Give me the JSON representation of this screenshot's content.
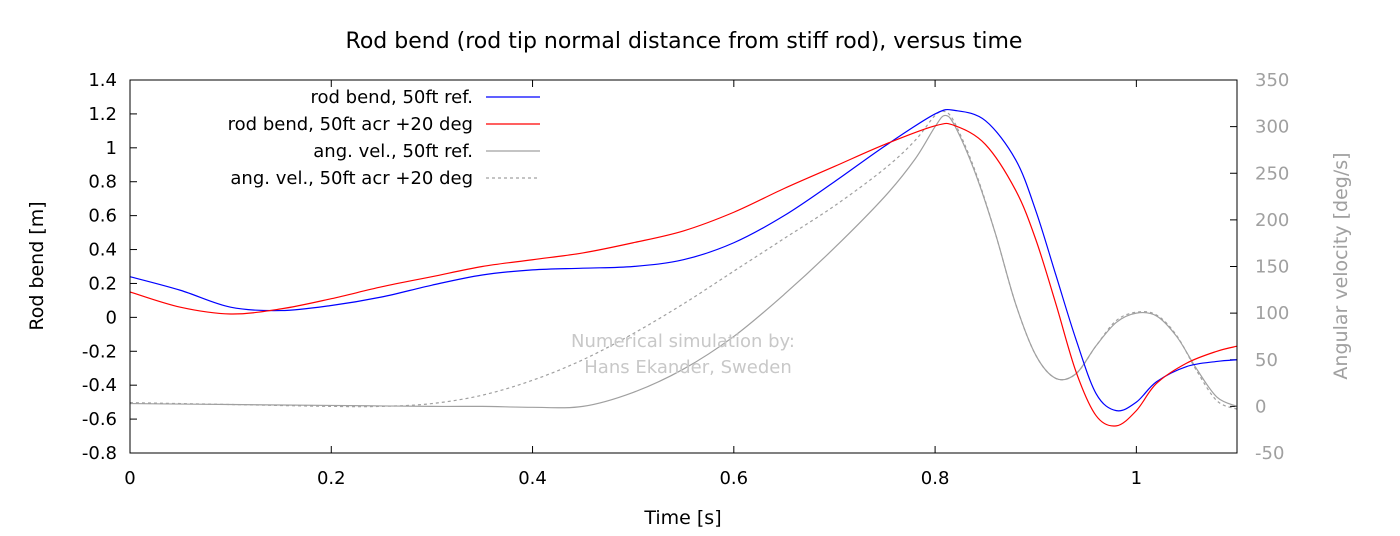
{
  "chart_data": {
    "type": "line",
    "title": "Rod bend (rod tip normal distance from stiff rod), versus time",
    "xlabel": "Time [s]",
    "ylabel": "Rod bend [m]",
    "y2label": "Angular velocity [deg/s]",
    "xlim": [
      0,
      1.1
    ],
    "ylim": [
      -0.8,
      1.4
    ],
    "y2lim": [
      -50,
      350
    ],
    "x_ticks": [
      0,
      0.2,
      0.4,
      0.6,
      0.8,
      1
    ],
    "x_tick_labels": [
      "0",
      "0.2",
      "0.4",
      "0.6",
      "0.8",
      "1"
    ],
    "y_ticks": [
      -0.8,
      -0.6,
      -0.4,
      -0.2,
      0,
      0.2,
      0.4,
      0.6,
      0.8,
      1,
      1.2,
      1.4
    ],
    "y_tick_labels": [
      "-0.8",
      "-0.6",
      "-0.4",
      "-0.2",
      "0",
      "0.2",
      "0.4",
      "0.6",
      "0.8",
      "1",
      "1.2",
      "1.4"
    ],
    "y2_ticks": [
      -50,
      0,
      50,
      100,
      150,
      200,
      250,
      300,
      350
    ],
    "y2_tick_labels": [
      "-50",
      "0",
      "50",
      "100",
      "150",
      "200",
      "250",
      "300",
      "350"
    ],
    "grid": false,
    "legend_position": "top-left",
    "annotation": [
      "Numerical simulation by:",
      "Hans Ekander, Sweden"
    ],
    "series": [
      {
        "name": "rod bend, 50ft ref.",
        "axis": "left",
        "color": "#0000ff",
        "dash": "solid",
        "points": [
          [
            0,
            0.24
          ],
          [
            0.05,
            0.16
          ],
          [
            0.1,
            0.06
          ],
          [
            0.15,
            0.04
          ],
          [
            0.2,
            0.07
          ],
          [
            0.25,
            0.12
          ],
          [
            0.3,
            0.19
          ],
          [
            0.35,
            0.25
          ],
          [
            0.4,
            0.28
          ],
          [
            0.45,
            0.29
          ],
          [
            0.5,
            0.3
          ],
          [
            0.55,
            0.34
          ],
          [
            0.6,
            0.44
          ],
          [
            0.65,
            0.6
          ],
          [
            0.7,
            0.8
          ],
          [
            0.75,
            1.01
          ],
          [
            0.8,
            1.2
          ],
          [
            0.82,
            1.22
          ],
          [
            0.85,
            1.16
          ],
          [
            0.88,
            0.93
          ],
          [
            0.9,
            0.63
          ],
          [
            0.92,
            0.25
          ],
          [
            0.94,
            -0.13
          ],
          [
            0.96,
            -0.45
          ],
          [
            0.98,
            -0.55
          ],
          [
            1.0,
            -0.5
          ],
          [
            1.02,
            -0.38
          ],
          [
            1.05,
            -0.29
          ],
          [
            1.08,
            -0.26
          ],
          [
            1.1,
            -0.25
          ]
        ]
      },
      {
        "name": "rod bend, 50ft acr +20 deg",
        "axis": "left",
        "color": "#ff0000",
        "dash": "solid",
        "points": [
          [
            0,
            0.15
          ],
          [
            0.05,
            0.06
          ],
          [
            0.1,
            0.02
          ],
          [
            0.15,
            0.05
          ],
          [
            0.2,
            0.11
          ],
          [
            0.25,
            0.18
          ],
          [
            0.3,
            0.24
          ],
          [
            0.35,
            0.3
          ],
          [
            0.4,
            0.34
          ],
          [
            0.45,
            0.38
          ],
          [
            0.5,
            0.44
          ],
          [
            0.55,
            0.51
          ],
          [
            0.6,
            0.62
          ],
          [
            0.65,
            0.76
          ],
          [
            0.7,
            0.89
          ],
          [
            0.75,
            1.02
          ],
          [
            0.8,
            1.13
          ],
          [
            0.82,
            1.13
          ],
          [
            0.85,
            1.02
          ],
          [
            0.88,
            0.75
          ],
          [
            0.9,
            0.46
          ],
          [
            0.92,
            0.08
          ],
          [
            0.94,
            -0.32
          ],
          [
            0.96,
            -0.58
          ],
          [
            0.98,
            -0.64
          ],
          [
            1.0,
            -0.55
          ],
          [
            1.02,
            -0.39
          ],
          [
            1.05,
            -0.27
          ],
          [
            1.08,
            -0.2
          ],
          [
            1.1,
            -0.17
          ]
        ]
      },
      {
        "name": "ang. vel., 50ft ref.",
        "axis": "right",
        "color": "#a0a0a0",
        "dash": "solid",
        "points": [
          [
            0,
            3
          ],
          [
            0.1,
            2
          ],
          [
            0.2,
            1
          ],
          [
            0.3,
            0
          ],
          [
            0.35,
            0
          ],
          [
            0.4,
            -1
          ],
          [
            0.45,
            0
          ],
          [
            0.5,
            15
          ],
          [
            0.55,
            40
          ],
          [
            0.6,
            75
          ],
          [
            0.65,
            120
          ],
          [
            0.7,
            170
          ],
          [
            0.75,
            225
          ],
          [
            0.78,
            265
          ],
          [
            0.8,
            300
          ],
          [
            0.81,
            312
          ],
          [
            0.82,
            300
          ],
          [
            0.84,
            250
          ],
          [
            0.86,
            185
          ],
          [
            0.88,
            110
          ],
          [
            0.9,
            55
          ],
          [
            0.92,
            30
          ],
          [
            0.94,
            35
          ],
          [
            0.96,
            65
          ],
          [
            0.98,
            90
          ],
          [
            1.0,
            100
          ],
          [
            1.02,
            97
          ],
          [
            1.04,
            75
          ],
          [
            1.06,
            40
          ],
          [
            1.08,
            10
          ],
          [
            1.1,
            0
          ]
        ]
      },
      {
        "name": "ang. vel., 50ft acr +20 deg",
        "axis": "right",
        "color": "#a0a0a0",
        "dash": "dashed",
        "points": [
          [
            0,
            4
          ],
          [
            0.1,
            2
          ],
          [
            0.2,
            0
          ],
          [
            0.25,
            0
          ],
          [
            0.3,
            3
          ],
          [
            0.35,
            12
          ],
          [
            0.4,
            28
          ],
          [
            0.45,
            50
          ],
          [
            0.5,
            78
          ],
          [
            0.55,
            110
          ],
          [
            0.6,
            145
          ],
          [
            0.65,
            180
          ],
          [
            0.7,
            215
          ],
          [
            0.75,
            255
          ],
          [
            0.78,
            285
          ],
          [
            0.8,
            312
          ],
          [
            0.81,
            316
          ],
          [
            0.82,
            303
          ],
          [
            0.84,
            252
          ],
          [
            0.86,
            185
          ],
          [
            0.88,
            110
          ],
          [
            0.9,
            55
          ],
          [
            0.92,
            30
          ],
          [
            0.94,
            35
          ],
          [
            0.96,
            65
          ],
          [
            0.98,
            92
          ],
          [
            1.0,
            101
          ],
          [
            1.02,
            98
          ],
          [
            1.04,
            76
          ],
          [
            1.06,
            38
          ],
          [
            1.08,
            6
          ],
          [
            1.1,
            -3
          ]
        ]
      }
    ]
  }
}
